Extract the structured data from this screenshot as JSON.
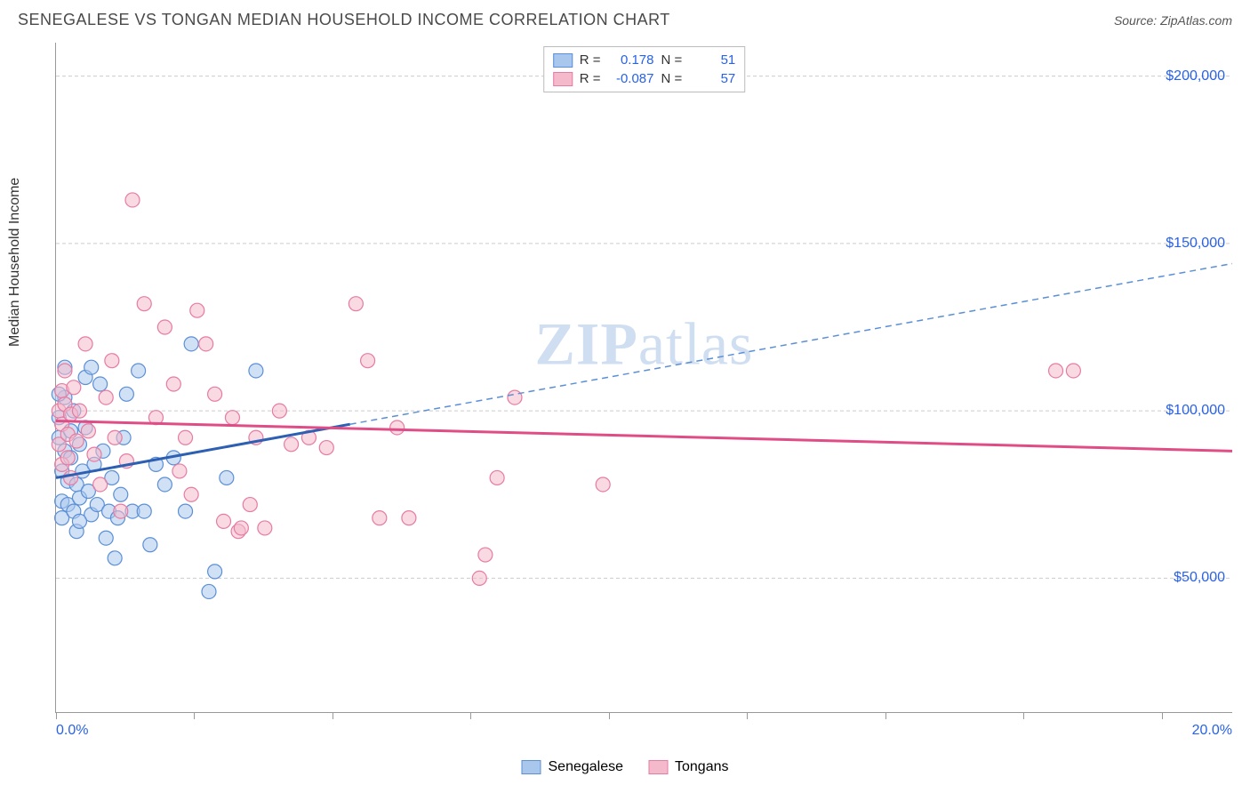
{
  "header": {
    "title": "SENEGALESE VS TONGAN MEDIAN HOUSEHOLD INCOME CORRELATION CHART",
    "source_prefix": "Source: ",
    "source_name": "ZipAtlas.com"
  },
  "watermark": {
    "bold": "ZIP",
    "light": "atlas"
  },
  "chart": {
    "type": "scatter",
    "ylabel": "Median Household Income",
    "background_color": "#ffffff",
    "grid_color": "#cccccc",
    "grid_dash": "4 3",
    "axis_color": "#999999",
    "x_axis": {
      "min_pct": 0.0,
      "max_pct": 20.0,
      "min_label": "0.0%",
      "max_label": "20.0%",
      "tick_positions_pct": [
        0,
        2.35,
        4.7,
        7.05,
        9.4,
        11.75,
        14.1,
        16.45,
        18.8
      ],
      "label_color": "#2962e6",
      "label_fontsize": 16
    },
    "y_axis": {
      "min": 10000,
      "max": 210000,
      "grid_values": [
        50000,
        100000,
        150000,
        200000
      ],
      "tick_labels": [
        "$50,000",
        "$100,000",
        "$150,000",
        "$200,000"
      ],
      "label_color": "#2962e6",
      "label_fontsize": 16
    },
    "series": [
      {
        "name": "Senegalese",
        "fill_color": "#a9c7ec",
        "stroke_color": "#5b8fd6",
        "fill_opacity": 0.55,
        "marker_radius": 8,
        "R": "0.178",
        "N": "51",
        "trend": {
          "solid": {
            "x1_pct": 0,
            "y1": 80000,
            "x2_pct": 5.0,
            "y2": 96000,
            "color": "#2d5fb3",
            "width": 3
          },
          "dashed": {
            "x1_pct": 5.0,
            "y1": 96000,
            "x2_pct": 20.0,
            "y2": 144000,
            "color": "#5b8fd6",
            "width": 1.5,
            "dash": "7 5"
          }
        },
        "points": [
          {
            "x": 0.05,
            "y": 98000
          },
          {
            "x": 0.05,
            "y": 92000
          },
          {
            "x": 0.1,
            "y": 82000
          },
          {
            "x": 0.1,
            "y": 73000
          },
          {
            "x": 0.1,
            "y": 68000
          },
          {
            "x": 0.15,
            "y": 104000
          },
          {
            "x": 0.15,
            "y": 88000
          },
          {
            "x": 0.2,
            "y": 79000
          },
          {
            "x": 0.2,
            "y": 72000
          },
          {
            "x": 0.25,
            "y": 94000
          },
          {
            "x": 0.25,
            "y": 86000
          },
          {
            "x": 0.3,
            "y": 70000
          },
          {
            "x": 0.3,
            "y": 100000
          },
          {
            "x": 0.35,
            "y": 78000
          },
          {
            "x": 0.35,
            "y": 64000
          },
          {
            "x": 0.4,
            "y": 90000
          },
          {
            "x": 0.4,
            "y": 74000
          },
          {
            "x": 0.45,
            "y": 82000
          },
          {
            "x": 0.5,
            "y": 110000
          },
          {
            "x": 0.5,
            "y": 95000
          },
          {
            "x": 0.55,
            "y": 76000
          },
          {
            "x": 0.6,
            "y": 69000
          },
          {
            "x": 0.65,
            "y": 84000
          },
          {
            "x": 0.7,
            "y": 72000
          },
          {
            "x": 0.75,
            "y": 108000
          },
          {
            "x": 0.8,
            "y": 88000
          },
          {
            "x": 0.85,
            "y": 62000
          },
          {
            "x": 0.9,
            "y": 70000
          },
          {
            "x": 0.95,
            "y": 80000
          },
          {
            "x": 1.0,
            "y": 56000
          },
          {
            "x": 1.05,
            "y": 68000
          },
          {
            "x": 1.1,
            "y": 75000
          },
          {
            "x": 1.15,
            "y": 92000
          },
          {
            "x": 1.3,
            "y": 70000
          },
          {
            "x": 1.4,
            "y": 112000
          },
          {
            "x": 1.5,
            "y": 70000
          },
          {
            "x": 1.6,
            "y": 60000
          },
          {
            "x": 1.7,
            "y": 84000
          },
          {
            "x": 1.85,
            "y": 78000
          },
          {
            "x": 2.0,
            "y": 86000
          },
          {
            "x": 2.2,
            "y": 70000
          },
          {
            "x": 2.3,
            "y": 120000
          },
          {
            "x": 2.6,
            "y": 46000
          },
          {
            "x": 2.7,
            "y": 52000
          },
          {
            "x": 0.6,
            "y": 113000
          },
          {
            "x": 0.15,
            "y": 113000
          },
          {
            "x": 0.05,
            "y": 105000
          },
          {
            "x": 0.4,
            "y": 67000
          },
          {
            "x": 3.4,
            "y": 112000
          },
          {
            "x": 2.9,
            "y": 80000
          },
          {
            "x": 1.2,
            "y": 105000
          }
        ]
      },
      {
        "name": "Tongans",
        "fill_color": "#f4b9cb",
        "stroke_color": "#e77ba2",
        "fill_opacity": 0.55,
        "marker_radius": 8,
        "R": "-0.087",
        "N": "57",
        "trend": {
          "solid": {
            "x1_pct": 0,
            "y1": 97000,
            "x2_pct": 20.0,
            "y2": 88000,
            "color": "#e04d86",
            "width": 3
          }
        },
        "points": [
          {
            "x": 0.05,
            "y": 100000
          },
          {
            "x": 0.05,
            "y": 90000
          },
          {
            "x": 0.1,
            "y": 106000
          },
          {
            "x": 0.1,
            "y": 96000
          },
          {
            "x": 0.1,
            "y": 84000
          },
          {
            "x": 0.15,
            "y": 112000
          },
          {
            "x": 0.15,
            "y": 102000
          },
          {
            "x": 0.2,
            "y": 93000
          },
          {
            "x": 0.2,
            "y": 86000
          },
          {
            "x": 0.25,
            "y": 99000
          },
          {
            "x": 0.25,
            "y": 80000
          },
          {
            "x": 0.3,
            "y": 107000
          },
          {
            "x": 0.35,
            "y": 91000
          },
          {
            "x": 0.4,
            "y": 100000
          },
          {
            "x": 0.5,
            "y": 120000
          },
          {
            "x": 0.55,
            "y": 94000
          },
          {
            "x": 0.65,
            "y": 87000
          },
          {
            "x": 0.75,
            "y": 78000
          },
          {
            "x": 0.85,
            "y": 104000
          },
          {
            "x": 0.95,
            "y": 115000
          },
          {
            "x": 1.0,
            "y": 92000
          },
          {
            "x": 1.1,
            "y": 70000
          },
          {
            "x": 1.2,
            "y": 85000
          },
          {
            "x": 1.3,
            "y": 163000
          },
          {
            "x": 1.5,
            "y": 132000
          },
          {
            "x": 1.7,
            "y": 98000
          },
          {
            "x": 1.85,
            "y": 125000
          },
          {
            "x": 2.0,
            "y": 108000
          },
          {
            "x": 2.1,
            "y": 82000
          },
          {
            "x": 2.2,
            "y": 92000
          },
          {
            "x": 2.3,
            "y": 75000
          },
          {
            "x": 2.4,
            "y": 130000
          },
          {
            "x": 2.55,
            "y": 120000
          },
          {
            "x": 2.7,
            "y": 105000
          },
          {
            "x": 2.85,
            "y": 67000
          },
          {
            "x": 3.0,
            "y": 98000
          },
          {
            "x": 3.1,
            "y": 64000
          },
          {
            "x": 3.15,
            "y": 65000
          },
          {
            "x": 3.3,
            "y": 72000
          },
          {
            "x": 3.4,
            "y": 92000
          },
          {
            "x": 3.55,
            "y": 65000
          },
          {
            "x": 3.8,
            "y": 100000
          },
          {
            "x": 4.0,
            "y": 90000
          },
          {
            "x": 4.3,
            "y": 92000
          },
          {
            "x": 4.6,
            "y": 89000
          },
          {
            "x": 5.1,
            "y": 132000
          },
          {
            "x": 5.3,
            "y": 115000
          },
          {
            "x": 5.5,
            "y": 68000
          },
          {
            "x": 5.8,
            "y": 95000
          },
          {
            "x": 6.0,
            "y": 68000
          },
          {
            "x": 7.2,
            "y": 50000
          },
          {
            "x": 7.3,
            "y": 57000
          },
          {
            "x": 7.5,
            "y": 80000
          },
          {
            "x": 7.8,
            "y": 104000
          },
          {
            "x": 9.3,
            "y": 78000
          },
          {
            "x": 17.0,
            "y": 112000
          },
          {
            "x": 17.3,
            "y": 112000
          }
        ]
      }
    ],
    "stats_legend_labels": {
      "R": "R =",
      "N": "N ="
    },
    "bottom_legend": [
      "Senegalese",
      "Tongans"
    ]
  }
}
